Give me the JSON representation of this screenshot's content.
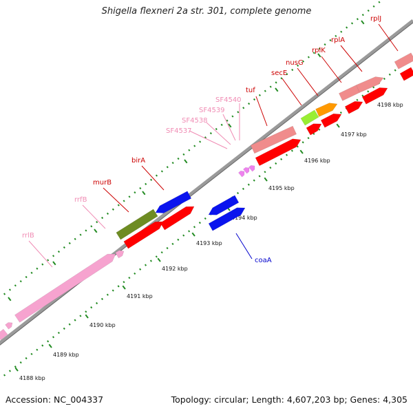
{
  "title": "Shigella flexneri 2a str. 301, complete genome",
  "footer": {
    "accession": "Accession: NC_004337",
    "summary": "Topology: circular; Length: 4,607,203 bp; Genes: 4,305"
  },
  "colors": {
    "rrna": "#f6a3cf",
    "gene_red": "#ff0000",
    "gene_blue": "#0a14ee",
    "gene_salmon": "#f08c8c",
    "gene_olive": "#6e8c23",
    "gene_lime": "#99ee33",
    "gene_orange": "#ff9900",
    "label_red": "#cc0000",
    "label_pink": "#f08cb4",
    "label_blue": "#0000cc",
    "tick_green": "#228b22"
  },
  "scale": {
    "unit": "kbp",
    "ticks": [
      {
        "kbp": 4188,
        "label": "4188 kbp"
      },
      {
        "kbp": 4189,
        "label": "4189 kbp"
      },
      {
        "kbp": 4190,
        "label": "4190 kbp"
      },
      {
        "kbp": 4191,
        "label": "4191 kbp"
      },
      {
        "kbp": 4192,
        "label": "4192 kbp"
      },
      {
        "kbp": 4193,
        "label": "4193 kbp"
      },
      {
        "kbp": 4194,
        "label": "4194 kbp"
      },
      {
        "kbp": 4195,
        "label": "4195 kbp"
      },
      {
        "kbp": 4196,
        "label": "4196 kbp"
      },
      {
        "kbp": 4197,
        "label": "4197 kbp"
      },
      {
        "kbp": 4198,
        "label": "4198 kbp"
      }
    ]
  },
  "labels": [
    {
      "name": "rrlB",
      "color_key": "label_pink"
    },
    {
      "name": "rrfB",
      "color_key": "label_pink"
    },
    {
      "name": "murB",
      "color_key": "label_red"
    },
    {
      "name": "birA",
      "color_key": "label_red"
    },
    {
      "name": "SF4537",
      "color_key": "label_pink"
    },
    {
      "name": "SF4538",
      "color_key": "label_pink"
    },
    {
      "name": "SF4539",
      "color_key": "label_pink"
    },
    {
      "name": "SF4540",
      "color_key": "label_pink"
    },
    {
      "name": "tuf",
      "color_key": "label_red"
    },
    {
      "name": "secE",
      "color_key": "label_red"
    },
    {
      "name": "nusG",
      "color_key": "label_red"
    },
    {
      "name": "rplK",
      "color_key": "label_red"
    },
    {
      "name": "rplA",
      "color_key": "label_red"
    },
    {
      "name": "rplJ",
      "color_key": "label_red"
    },
    {
      "name": "coaA",
      "color_key": "label_blue"
    }
  ]
}
